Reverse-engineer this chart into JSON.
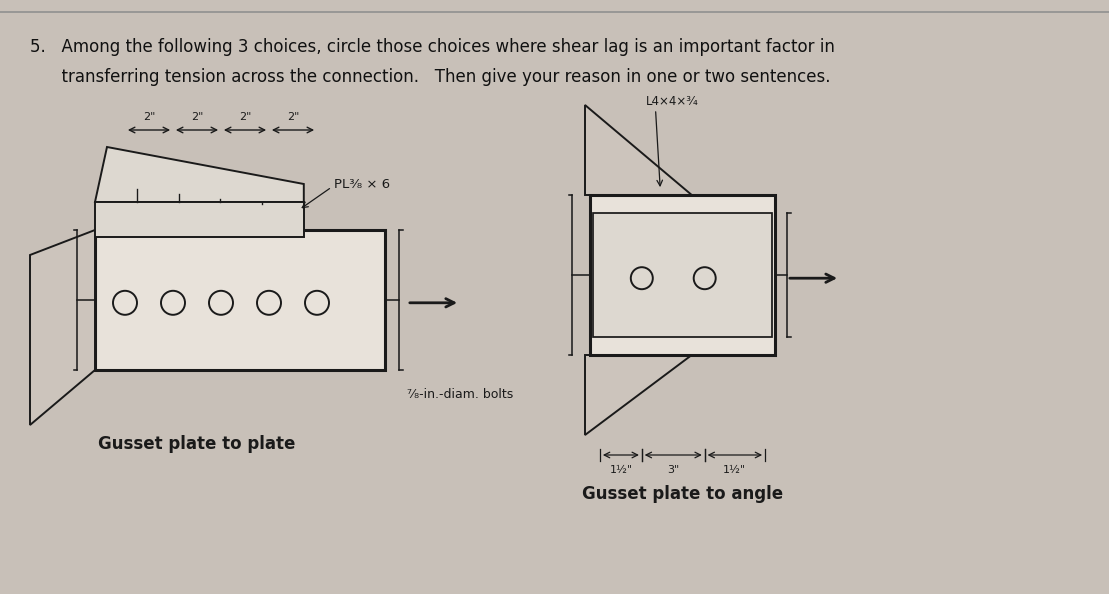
{
  "bg_color": "#c8c0b8",
  "title_line1": "5.   Among the following 3 choices, circle those choices where shear lag is an important factor in",
  "title_line2": "      transferring tension across the connection.   Then give your reason in one or two sentences.",
  "label_plate_to_plate": "Gusset plate to plate",
  "label_plate_to_angle": "Gusset plate to angle",
  "label_pl": "PL³⁄₈ × 6",
  "label_bolts": "⁷⁄₈-in.-diam. bolts",
  "label_lax": "L4×4×³⁄₄",
  "label_dim_left": "1½\"",
  "label_dim_right": "1½\"",
  "label_dim_mid": "3\"",
  "dim_labels": [
    "2\"",
    "2\"",
    "2\"",
    "2\""
  ],
  "line_color": "#1a1a1a",
  "text_color": "#111111",
  "plate_fill": "#e8e2da",
  "splice_fill": "#ddd8d0",
  "angle_fill": "#ccc4bc"
}
